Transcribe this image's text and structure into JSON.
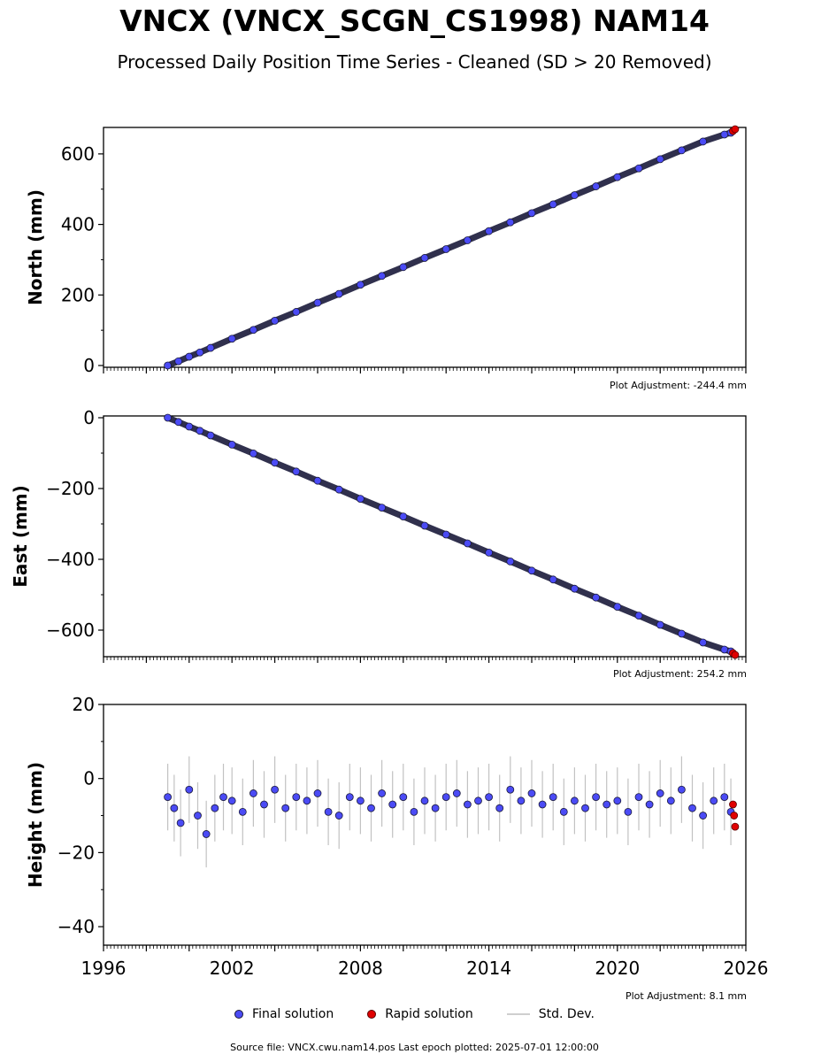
{
  "title": "VNCX (VNCX_SCGN_CS1998) NAM14",
  "subtitle": "Processed Daily Position Time Series - Cleaned (SD > 20 Removed)",
  "legend": {
    "final": "Final solution",
    "rapid": "Rapid solution",
    "std": "Std. Dev."
  },
  "footer": "Source file: VNCX.cwu.nam14.pos  Last epoch plotted: 2025-07-01 12:00:00",
  "colors": {
    "final": "#4b4bf5",
    "rapid": "#e00000",
    "std": "#9a9a9a",
    "edge": "#1a1a3a"
  },
  "chart_data": [
    {
      "type": "scatter",
      "ylabel": "North (mm)",
      "xlim": [
        1996,
        2026
      ],
      "ylim": [
        -5,
        675
      ],
      "yticks": [
        0,
        200,
        400,
        600
      ],
      "xticks": [
        1996,
        2002,
        2008,
        2014,
        2020,
        2026
      ],
      "show_xtick_labels": false,
      "adjustment": "Plot Adjustment: -244.4 mm",
      "series": [
        {
          "name": "Final solution",
          "x": [
            1999.0,
            1999.5,
            2000.0,
            2000.5,
            2001.0,
            2002.0,
            2003.0,
            2004.0,
            2005.0,
            2006.0,
            2007.0,
            2008.0,
            2009.0,
            2010.0,
            2011.0,
            2012.0,
            2013.0,
            2014.0,
            2015.0,
            2016.0,
            2017.0,
            2018.0,
            2019.0,
            2020.0,
            2021.0,
            2022.0,
            2023.0,
            2024.0,
            2025.0,
            2025.3
          ],
          "y": [
            0,
            12,
            25,
            37,
            50,
            76,
            101,
            127,
            152,
            178,
            203,
            229,
            254,
            279,
            305,
            330,
            355,
            381,
            406,
            432,
            457,
            483,
            508,
            534,
            559,
            585,
            610,
            635,
            655,
            660
          ]
        },
        {
          "name": "Rapid solution",
          "x": [
            2025.4,
            2025.5
          ],
          "y": [
            665,
            670
          ]
        }
      ]
    },
    {
      "type": "scatter",
      "ylabel": "East (mm)",
      "xlim": [
        1996,
        2026
      ],
      "ylim": [
        -675,
        5
      ],
      "yticks": [
        0,
        -200,
        -400,
        -600
      ],
      "xticks": [
        1996,
        2002,
        2008,
        2014,
        2020,
        2026
      ],
      "show_xtick_labels": false,
      "adjustment": "Plot Adjustment: 254.2 mm",
      "series": [
        {
          "name": "Final solution",
          "x": [
            1999.0,
            1999.5,
            2000.0,
            2000.5,
            2001.0,
            2002.0,
            2003.0,
            2004.0,
            2005.0,
            2006.0,
            2007.0,
            2008.0,
            2009.0,
            2010.0,
            2011.0,
            2012.0,
            2013.0,
            2014.0,
            2015.0,
            2016.0,
            2017.0,
            2018.0,
            2019.0,
            2020.0,
            2021.0,
            2022.0,
            2023.0,
            2024.0,
            2025.0,
            2025.3
          ],
          "y": [
            0,
            -12,
            -25,
            -37,
            -50,
            -76,
            -101,
            -127,
            -152,
            -178,
            -203,
            -229,
            -254,
            -279,
            -305,
            -330,
            -355,
            -381,
            -406,
            -432,
            -457,
            -483,
            -508,
            -534,
            -559,
            -585,
            -610,
            -635,
            -655,
            -660
          ]
        },
        {
          "name": "Rapid solution",
          "x": [
            2025.4,
            2025.5
          ],
          "y": [
            -665,
            -670
          ]
        }
      ]
    },
    {
      "type": "scatter",
      "ylabel": "Height (mm)",
      "xlim": [
        1996,
        2026
      ],
      "ylim": [
        -45,
        20
      ],
      "yticks": [
        20,
        0,
        -20,
        -40
      ],
      "xticks": [
        1996,
        2002,
        2008,
        2014,
        2020,
        2026
      ],
      "show_xtick_labels": true,
      "adjustment": "Plot Adjustment: 8.1 mm",
      "series": [
        {
          "name": "Final solution",
          "x": [
            1999.0,
            1999.3,
            1999.6,
            2000.0,
            2000.4,
            2000.8,
            2001.2,
            2001.6,
            2002.0,
            2002.5,
            2003.0,
            2003.5,
            2004.0,
            2004.5,
            2005.0,
            2005.5,
            2006.0,
            2006.5,
            2007.0,
            2007.5,
            2008.0,
            2008.5,
            2009.0,
            2009.5,
            2010.0,
            2010.5,
            2011.0,
            2011.5,
            2012.0,
            2012.5,
            2013.0,
            2013.5,
            2014.0,
            2014.5,
            2015.0,
            2015.5,
            2016.0,
            2016.5,
            2017.0,
            2017.5,
            2018.0,
            2018.5,
            2019.0,
            2019.5,
            2020.0,
            2020.5,
            2021.0,
            2021.5,
            2022.0,
            2022.5,
            2023.0,
            2023.5,
            2024.0,
            2024.5,
            2025.0,
            2025.3
          ],
          "y": [
            -5,
            -8,
            -12,
            -3,
            -10,
            -15,
            -8,
            -5,
            -6,
            -9,
            -4,
            -7,
            -3,
            -8,
            -5,
            -6,
            -4,
            -9,
            -10,
            -5,
            -6,
            -8,
            -4,
            -7,
            -5,
            -9,
            -6,
            -8,
            -5,
            -4,
            -7,
            -6,
            -5,
            -8,
            -3,
            -6,
            -4,
            -7,
            -5,
            -9,
            -6,
            -8,
            -5,
            -7,
            -6,
            -9,
            -5,
            -7,
            -4,
            -6,
            -3,
            -8,
            -10,
            -6,
            -5,
            -9
          ]
        },
        {
          "name": "Rapid solution",
          "x": [
            2025.4,
            2025.45,
            2025.5
          ],
          "y": [
            -7,
            -10,
            -13
          ]
        }
      ]
    }
  ]
}
